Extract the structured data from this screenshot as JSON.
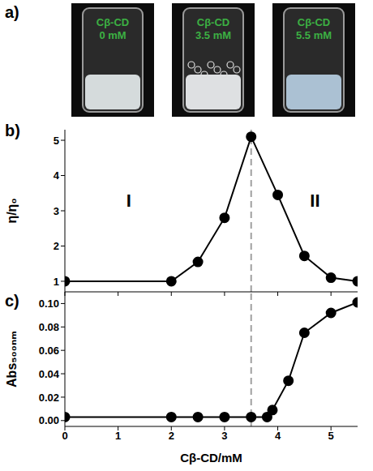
{
  "panel_a": {
    "letter": "a)",
    "vials": [
      {
        "label_line1": "Cβ-CD",
        "label_line2": "0 mM",
        "color": "#e8eef0"
      },
      {
        "label_line1": "Cβ-CD",
        "label_line2": "3.5 mM",
        "color": "#f2f4f6"
      },
      {
        "label_line1": "Cβ-CD",
        "label_line2": "5.5 mM",
        "color": "#b9d2e6"
      }
    ]
  },
  "chart_data": [
    {
      "letter": "b)",
      "type": "line",
      "x": [
        0,
        2,
        2.5,
        3,
        3.5,
        4,
        4.5,
        5,
        5.5
      ],
      "values": [
        1,
        1,
        1.55,
        2.8,
        5.1,
        3.45,
        1.72,
        1.1,
        1.0
      ],
      "color": "#000000",
      "marker": "circle",
      "line_style": "solid",
      "y_label": "η/η₀",
      "xlim": [
        0,
        5.5
      ],
      "xticks": [
        0,
        1,
        2,
        3,
        4,
        5
      ],
      "ylim": [
        0.7,
        5.3
      ],
      "yticks": [
        1,
        2,
        3,
        4,
        5
      ],
      "tick_labels": "y",
      "reference_line": {
        "x": 3.5
      },
      "annotations": [
        {
          "text": "I",
          "x": 1.2,
          "y": 3.3
        },
        {
          "text": "II",
          "x": 4.7,
          "y": 3.3
        }
      ]
    },
    {
      "letter": "c)",
      "type": "line",
      "x": [
        0,
        2,
        2.5,
        3,
        3.5,
        3.8,
        3.9,
        4.2,
        4.5,
        5,
        5.5
      ],
      "values": [
        0.003,
        0.003,
        0.003,
        0.003,
        0.003,
        0.003,
        0.009,
        0.034,
        0.075,
        0.092,
        0.101
      ],
      "color": "#000000",
      "marker": "circle",
      "line_style": "solid",
      "x_label": "Cβ-CD/mM",
      "y_label": "Abs₅₀₀ₙₘ",
      "xlim": [
        0,
        5.5
      ],
      "xticks": [
        0,
        1,
        2,
        3,
        4,
        5
      ],
      "ylim": [
        -0.005,
        0.11
      ],
      "yticks": [
        {
          "value": 0,
          "label": "0.00"
        },
        {
          "value": 0.02,
          "label": "0.02"
        },
        {
          "value": 0.04,
          "label": "0.04"
        },
        {
          "value": 0.06,
          "label": "0.06"
        },
        {
          "value": 0.08,
          "label": "0.08"
        },
        {
          "value": 0.1,
          "label": "0.10"
        }
      ],
      "reference_line": {
        "x": 3.5
      }
    }
  ]
}
